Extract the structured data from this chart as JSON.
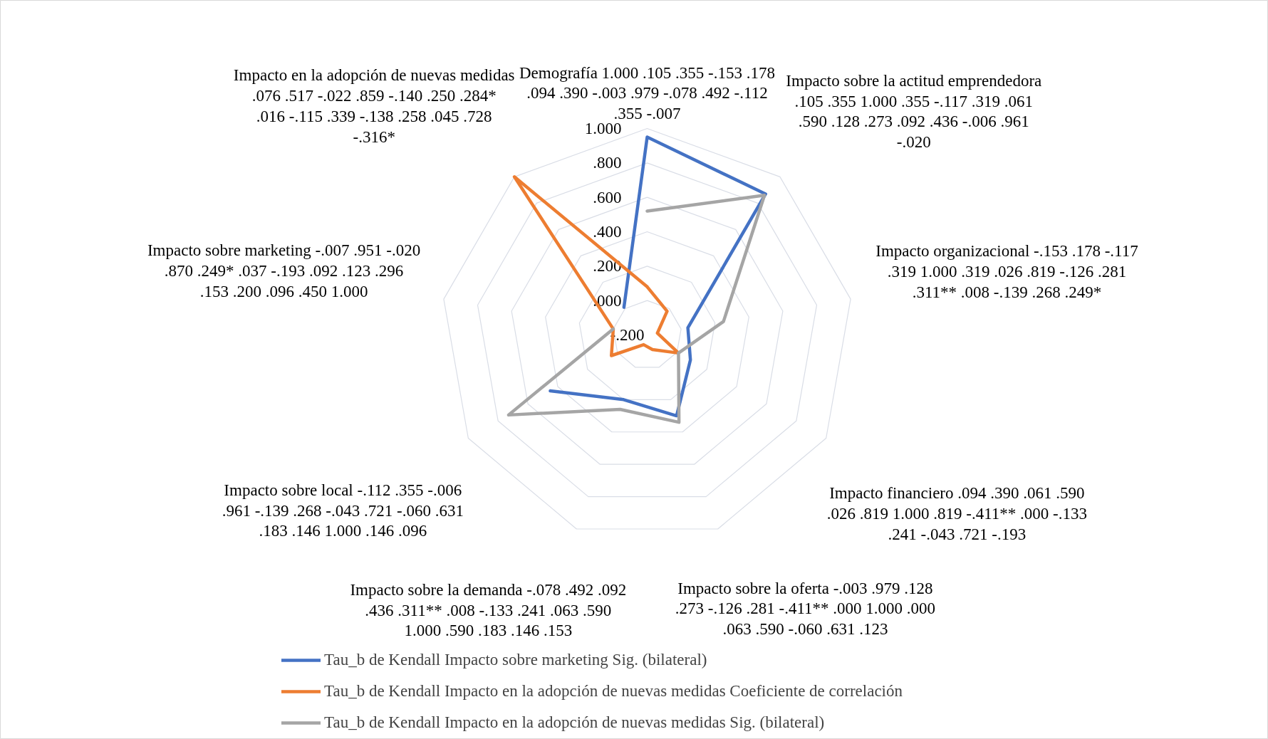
{
  "chart_data": {
    "type": "radar",
    "categories": [
      "Demografía 1.000 .105 .355 -.153 .178 .094 .390 -.003 .979 -.078 .492 -.112 .355 -.007",
      "Impacto sobre la actitud emprendedora .105 .355 1.000 .355 -.117 .319 .061 .590 .128 .273 .092 .436 -.006 .961 -.020",
      "Impacto organizacional -.153 .178 -.117 .319 1.000 .319 .026 .819 -.126 .281 .311** .008 -.139 .268 .249*",
      "Impacto financiero .094 .390 .061 .590 .026 .819 1.000 .819 -.411** .000 -.133 .241 -.043 .721 -.193",
      "Impacto sobre la oferta -.003 .979 .128 .273 -.126 .281 -.411** .000 1.000 .000 .063 .590 -.060 .631 .123",
      "Impacto sobre la demanda -.078 .492 .092 .436 .311** .008 -.133 .241 .063 .590 1.000 .590 .183 .146 .153",
      "Impacto sobre local -.112 .355 -.006 .961 -.139 .268 -.043 .721 -.060 .631 .183 .146 1.000 .146 .096",
      "Impacto sobre marketing -.007 .951 -.020 .870 .249* .037 -.193 .092 .123 .296 .153 .200 .096 .450 1.000",
      "Impacto en la adopción de nuevas medidas .076 .517 -.022 .859 -.140 .250 .284* .016 -.115 .339 -.138 .258 .045 .728 -.316*"
    ],
    "series": [
      {
        "name": "Tau_b de Kendall Impacto sobre marketing Sig. (bilateral)",
        "color": "#4472c4",
        "values": [
          0.95,
          0.87,
          0.04,
          0.09,
          0.3,
          0.2,
          0.45,
          null,
          0.01
        ]
      },
      {
        "name": "Tau_b de Kendall Impacto en la adopción de nuevas medidas Coeficiente de correlación",
        "color": "#ed7d31",
        "values": [
          0.08,
          -0.02,
          -0.14,
          0.01,
          -0.11,
          -0.14,
          0.04,
          0.0,
          1.0
        ]
      },
      {
        "name": "Tau_b de Kendall Impacto en la adopción de nuevas medidas Sig. (bilateral)",
        "color": "#a5a5a5",
        "values": [
          0.52,
          0.86,
          0.25,
          0.01,
          0.34,
          0.26,
          0.73,
          0.0,
          null
        ]
      }
    ],
    "ylim": [
      -0.2,
      1.0
    ],
    "yticks": [
      {
        "value": -0.2,
        "label": "-.200"
      },
      {
        "value": 0.0,
        "label": ".000"
      },
      {
        "value": 0.2,
        "label": ".200"
      },
      {
        "value": 0.4,
        "label": ".400"
      },
      {
        "value": 0.6,
        "label": ".600"
      },
      {
        "value": 0.8,
        "label": ".800"
      },
      {
        "value": 1.0,
        "label": "1.000"
      }
    ],
    "grid": true,
    "legend": "bottom"
  }
}
